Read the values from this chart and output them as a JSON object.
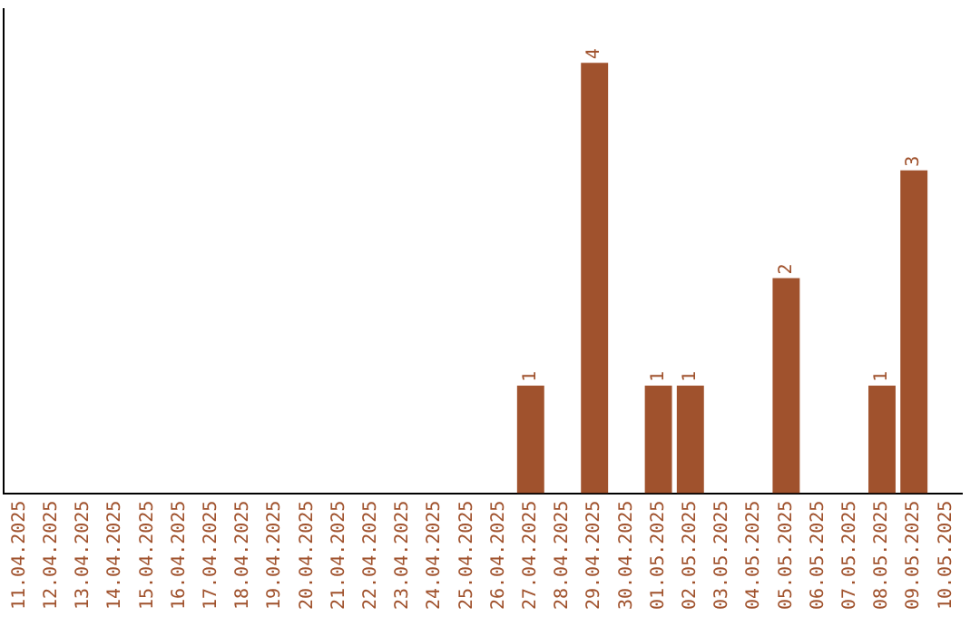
{
  "chart_data": {
    "type": "bar",
    "categories": [
      "11.04.2025",
      "12.04.2025",
      "13.04.2025",
      "14.04.2025",
      "15.04.2025",
      "16.04.2025",
      "17.04.2025",
      "18.04.2025",
      "19.04.2025",
      "20.04.2025",
      "21.04.2025",
      "22.04.2025",
      "23.04.2025",
      "24.04.2025",
      "25.04.2025",
      "26.04.2025",
      "27.04.2025",
      "28.04.2025",
      "29.04.2025",
      "30.04.2025",
      "01.05.2025",
      "02.05.2025",
      "03.05.2025",
      "04.05.2025",
      "05.05.2025",
      "06.05.2025",
      "07.05.2025",
      "08.05.2025",
      "09.05.2025",
      "10.05.2025"
    ],
    "values": [
      null,
      null,
      null,
      null,
      null,
      null,
      null,
      null,
      null,
      null,
      null,
      null,
      null,
      null,
      null,
      null,
      1,
      null,
      4,
      null,
      1,
      1,
      null,
      null,
      2,
      null,
      null,
      1,
      3,
      null
    ],
    "data_labels": true,
    "color": "#a0522d",
    "grid": false,
    "tick_labels": "x",
    "legend": false
  }
}
